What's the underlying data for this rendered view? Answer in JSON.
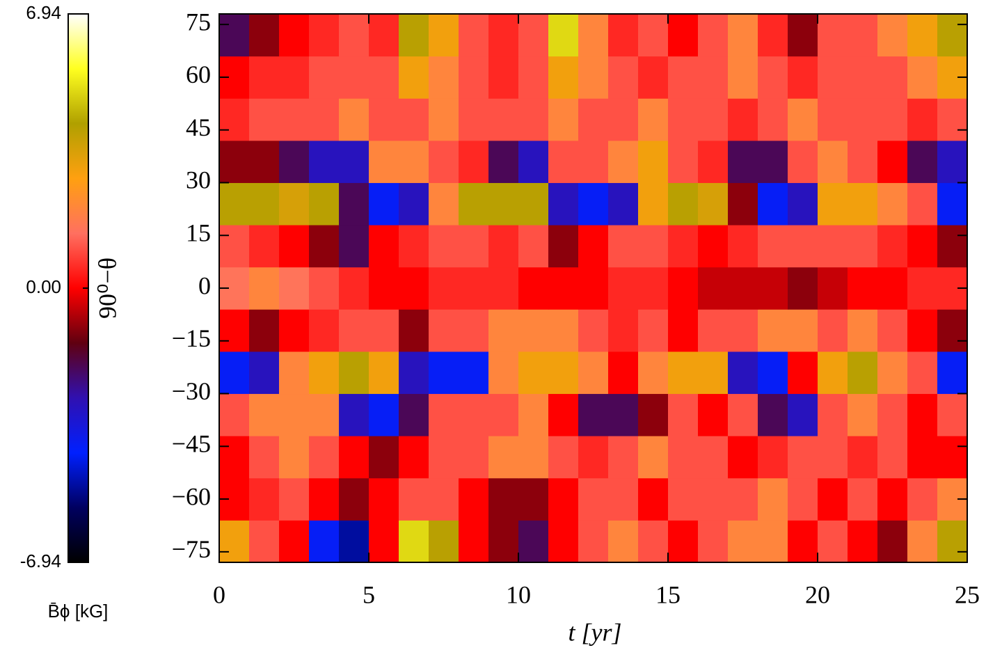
{
  "chart_data": {
    "type": "heatmap",
    "xlabel": "t [yr]",
    "ylabel": "90⁰−θ",
    "colorbar_label": "B̄ϕ [kG]",
    "xlim": [
      0,
      25
    ],
    "ylim": [
      -78,
      78
    ],
    "xticks": [
      0,
      5,
      10,
      15,
      20,
      25
    ],
    "yticks": [
      -75,
      -60,
      -45,
      -30,
      -15,
      0,
      15,
      30,
      45,
      60,
      75
    ],
    "zlim": [
      -6.94,
      6.94
    ],
    "colorbar_ticks": [
      -6.94,
      {
        "value": 0,
        "label": "0.00"
      },
      6.94
    ],
    "colormap": [
      "#000000",
      "#000060",
      "#0020ff",
      "#3010b0",
      "#600010",
      "#ff0000",
      "#ff7060",
      "#ffa010",
      "#b0a000",
      "#ffff20",
      "#ffffff"
    ],
    "x": [
      0.5,
      1.5,
      2.5,
      3.5,
      4.5,
      5.5,
      6.5,
      7.5,
      8.5,
      9.5,
      10.5,
      11.5,
      12.5,
      13.5,
      14.5,
      15.5,
      16.5,
      17.5,
      18.5,
      19.5,
      20.5,
      21.5,
      22.5,
      23.5,
      24.5
    ],
    "y": [
      -72,
      -60,
      -48,
      -36,
      -24,
      -12,
      0,
      12,
      24,
      36,
      48,
      60,
      72
    ],
    "values": [
      [
        3,
        1,
        0,
        -4,
        -5,
        0,
        5,
        4,
        0,
        -1,
        -2,
        0,
        1,
        2,
        1,
        0,
        1,
        2,
        2,
        0,
        1,
        0,
        -1,
        2,
        4
      ],
      [
        0,
        0.5,
        1,
        0,
        -1,
        0,
        1,
        1,
        0,
        -1,
        -1,
        0,
        1,
        1,
        0,
        1,
        1,
        1,
        2,
        1,
        0,
        1,
        0,
        1,
        2
      ],
      [
        0,
        1,
        2,
        1,
        0,
        -1,
        0,
        1,
        1,
        2,
        2,
        1,
        0.5,
        1,
        2,
        1,
        1,
        0,
        0.5,
        1,
        1,
        0.5,
        1,
        0,
        0
      ],
      [
        1,
        2,
        2,
        2,
        -3,
        -4,
        -2,
        1,
        1,
        1,
        2,
        0,
        -2,
        -2,
        -1,
        1,
        0,
        1,
        -2,
        -3,
        1,
        2,
        1,
        0,
        1
      ],
      [
        -4,
        -3,
        2,
        3,
        4,
        3,
        -3,
        -4,
        -4,
        2,
        3,
        3,
        2,
        0,
        2,
        3,
        3,
        -3,
        -4,
        0,
        3,
        4,
        2,
        1,
        -4
      ],
      [
        0,
        -1,
        0,
        0.5,
        1,
        1,
        -1,
        1,
        1,
        2,
        2,
        2,
        1,
        0.5,
        1,
        0,
        1,
        1,
        2,
        2,
        1,
        2,
        1,
        0,
        -1
      ],
      [
        1.5,
        2,
        1.5,
        1,
        0.5,
        0,
        0,
        0.5,
        0.5,
        0.5,
        0,
        0,
        0,
        0.5,
        0.5,
        0,
        -0.5,
        -0.5,
        -0.5,
        -1,
        -0.5,
        0,
        0,
        0.5,
        0.5
      ],
      [
        1,
        0.5,
        0,
        -1,
        -2,
        0,
        0.5,
        1,
        1,
        0.5,
        1,
        -1,
        0,
        1,
        1,
        0.5,
        0,
        0.5,
        1,
        1,
        1,
        1,
        0.5,
        0,
        -1
      ],
      [
        4,
        4,
        3.5,
        4,
        -2,
        -4,
        -3,
        2,
        4,
        4,
        4,
        -3,
        -4,
        -3,
        3,
        4,
        3.5,
        -1,
        -4,
        -3,
        3,
        3,
        2,
        1,
        -4
      ],
      [
        -1,
        -1,
        -2,
        -3,
        -3,
        2,
        2,
        1,
        0.5,
        -2,
        -3,
        1,
        1,
        2,
        3,
        1,
        0.5,
        -2,
        -2,
        1,
        2,
        1,
        0,
        -2,
        -3
      ],
      [
        0.5,
        1,
        1,
        1,
        2,
        1,
        1,
        2,
        1,
        1,
        1,
        2,
        1,
        1,
        2,
        1,
        1,
        0.5,
        1,
        2,
        1,
        1,
        1,
        0.5,
        1
      ],
      [
        0,
        0.5,
        0.5,
        1,
        1,
        1,
        3,
        2,
        1,
        0.5,
        1,
        3,
        2,
        1,
        0.5,
        1,
        1,
        2,
        1,
        0.5,
        1,
        1,
        1,
        2,
        3
      ],
      [
        -2,
        -1,
        0,
        0.5,
        1,
        0.5,
        4,
        3,
        1,
        0.5,
        1,
        5,
        2,
        0.5,
        1,
        0,
        1,
        2,
        0.5,
        -1,
        1,
        1,
        2,
        3,
        4
      ]
    ]
  }
}
